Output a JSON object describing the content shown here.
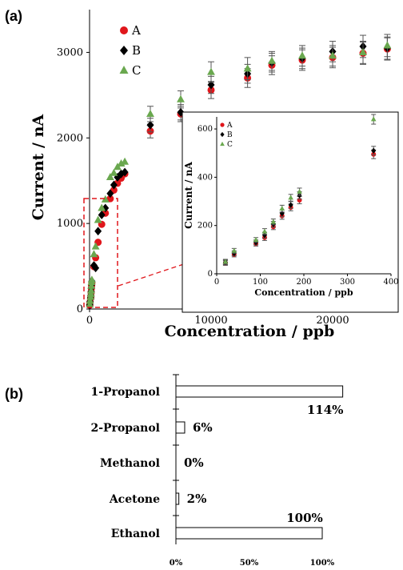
{
  "chart_data": [
    {
      "panel_label": "(a)",
      "type": "scatter",
      "xlabel": "Concentration / ppb",
      "ylabel": "Current / nA",
      "xlim": [
        0,
        25000
      ],
      "ylim": [
        0,
        3500
      ],
      "xticks": [
        0,
        10000,
        20000
      ],
      "yticks": [
        0,
        1000,
        2000,
        3000
      ],
      "legend_position": "top-left",
      "error_bars": true,
      "series": [
        {
          "name": "A",
          "color": "#e0161b",
          "marker": "circle",
          "points": [
            [
              20,
              45,
              10
            ],
            [
              40,
              80,
              10
            ],
            [
              90,
              125,
              10
            ],
            [
              110,
              150,
              12
            ],
            [
              130,
              195,
              12
            ],
            [
              150,
              240,
              14
            ],
            [
              170,
              275,
              14
            ],
            [
              190,
              305,
              15
            ],
            [
              360,
              495,
              18
            ],
            [
              500,
              600,
              25
            ],
            [
              700,
              780,
              30
            ],
            [
              1000,
              990,
              35
            ],
            [
              1300,
              1120,
              40
            ],
            [
              1700,
              1290,
              45
            ],
            [
              2000,
              1390,
              50
            ],
            [
              2300,
              1470,
              55
            ],
            [
              2600,
              1530,
              55
            ],
            [
              2900,
              1580,
              60
            ],
            [
              5000,
              2080,
              80
            ],
            [
              7500,
              2280,
              90
            ],
            [
              10000,
              2560,
              100
            ],
            [
              13000,
              2700,
              110
            ],
            [
              15000,
              2850,
              110
            ],
            [
              17500,
              2910,
              120
            ],
            [
              20000,
              2940,
              120
            ],
            [
              22500,
              2990,
              130
            ],
            [
              24500,
              3040,
              130
            ]
          ]
        },
        {
          "name": "B",
          "color": "#000000",
          "marker": "diamond",
          "points": [
            [
              20,
              48,
              10
            ],
            [
              40,
              85,
              10
            ],
            [
              90,
              130,
              10
            ],
            [
              110,
              160,
              12
            ],
            [
              130,
              205,
              12
            ],
            [
              150,
              250,
              14
            ],
            [
              170,
              285,
              14
            ],
            [
              190,
              325,
              15
            ],
            [
              360,
              510,
              18
            ],
            [
              500,
              480,
              25
            ],
            [
              700,
              910,
              30
            ],
            [
              1000,
              1100,
              35
            ],
            [
              1300,
              1180,
              40
            ],
            [
              1700,
              1350,
              45
            ],
            [
              2000,
              1450,
              50
            ],
            [
              2300,
              1540,
              55
            ],
            [
              2600,
              1580,
              55
            ],
            [
              2900,
              1600,
              60
            ],
            [
              5000,
              2150,
              80
            ],
            [
              7500,
              2300,
              90
            ],
            [
              10000,
              2620,
              100
            ],
            [
              13000,
              2750,
              110
            ],
            [
              15000,
              2880,
              110
            ],
            [
              17500,
              2930,
              120
            ],
            [
              20000,
              3010,
              120
            ],
            [
              22500,
              3070,
              130
            ],
            [
              24500,
              3050,
              130
            ]
          ]
        },
        {
          "name": "C",
          "color": "#6aa84f",
          "marker": "triangle",
          "points": [
            [
              20,
              50,
              10
            ],
            [
              40,
              95,
              10
            ],
            [
              90,
              140,
              10
            ],
            [
              110,
              175,
              12
            ],
            [
              130,
              215,
              12
            ],
            [
              150,
              270,
              14
            ],
            [
              170,
              315,
              14
            ],
            [
              190,
              340,
              15
            ],
            [
              360,
              640,
              20
            ],
            [
              500,
              730,
              25
            ],
            [
              700,
              1040,
              30
            ],
            [
              1000,
              1180,
              35
            ],
            [
              1300,
              1280,
              40
            ],
            [
              1700,
              1540,
              45
            ],
            [
              2000,
              1590,
              50
            ],
            [
              2300,
              1660,
              55
            ],
            [
              2600,
              1700,
              55
            ],
            [
              2900,
              1720,
              60
            ],
            [
              5000,
              2280,
              90
            ],
            [
              7500,
              2450,
              100
            ],
            [
              10000,
              2770,
              120
            ],
            [
              13000,
              2810,
              130
            ],
            [
              15000,
              2900,
              110
            ],
            [
              17500,
              2960,
              120
            ],
            [
              20000,
              2960,
              120
            ],
            [
              22500,
              3000,
              130
            ],
            [
              24500,
              3080,
              130
            ]
          ]
        }
      ],
      "inset": {
        "xlabel": "Concentration / ppb",
        "ylabel": "Current / nA",
        "xlim": [
          0,
          400
        ],
        "ylim": [
          0,
          650
        ],
        "xticks": [
          0,
          100,
          200,
          300,
          400
        ],
        "yticks": [
          0,
          200,
          400,
          600
        ],
        "legend_position": "top-left"
      }
    },
    {
      "panel_label": "(b)",
      "type": "bar",
      "orientation": "horizontal",
      "categories": [
        "1-Propanol",
        "2-Propanol",
        "Methanol",
        "Acetone",
        "Ethanol"
      ],
      "values": [
        114,
        6,
        0,
        2,
        100
      ],
      "value_labels": [
        "114%",
        "6%",
        "0%",
        "2%",
        "100%"
      ],
      "xticks": [
        "0%",
        "50%",
        "100%"
      ],
      "xlim": [
        0,
        130
      ],
      "bar_fill": "#ffffff",
      "bar_stroke": "#000000"
    }
  ]
}
